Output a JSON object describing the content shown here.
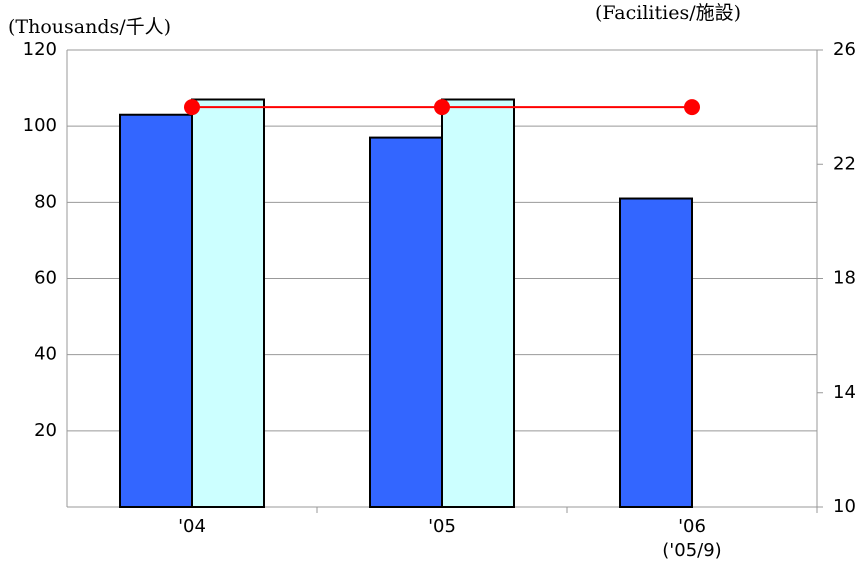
{
  "chart_data": {
    "type": "bar",
    "y_label": "(Thousands/千人)",
    "y2_label": "(Facilities/施設)",
    "categories": [
      "'04",
      "'05",
      "'06"
    ],
    "annotation": "('05/9)",
    "series": [
      {
        "color": "#3366ff",
        "values": [
          103,
          97,
          81
        ]
      },
      {
        "color": "#ccffff",
        "values": [
          107,
          107,
          null
        ]
      },
      {
        "type": "line",
        "axis": "y2",
        "color": "#ff0000",
        "values": [
          24,
          24,
          24
        ]
      }
    ],
    "ylim": [
      0,
      120
    ],
    "yticks": [
      20,
      40,
      60,
      80,
      100,
      120
    ],
    "y2lim": [
      10,
      26
    ],
    "y2ticks": [
      10,
      14,
      18,
      22,
      26
    ],
    "grid": true
  }
}
